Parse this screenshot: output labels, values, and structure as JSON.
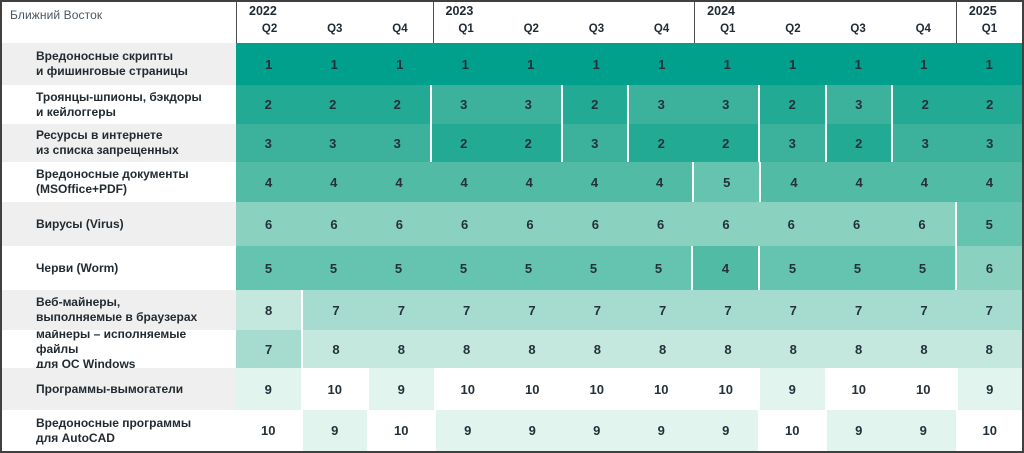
{
  "title": "Ближний Восток",
  "header": {
    "years": [
      {
        "label": "2022",
        "quarters": [
          "Q2",
          "Q3",
          "Q4"
        ]
      },
      {
        "label": "2023",
        "quarters": [
          "Q1",
          "Q2",
          "Q3",
          "Q4"
        ]
      },
      {
        "label": "2024",
        "quarters": [
          "Q1",
          "Q2",
          "Q3",
          "Q4"
        ]
      },
      {
        "label": "2025",
        "quarters": [
          "Q1"
        ]
      }
    ]
  },
  "colors": {
    "rank_scale": {
      "1": "#00a08c",
      "2": "#23aa94",
      "3": "#3cb29d",
      "4": "#52bba6",
      "5": "#65c4af",
      "6": "#8ad1c0",
      "7": "#a6dccf",
      "8": "#c4e8de",
      "9": "#e2f4ee",
      "10": "#ffffff"
    },
    "label_stripe": "#efefef",
    "label_text": "#222b31",
    "header_text": "#1f2a33",
    "title_text": "#4a5761"
  },
  "chart_data": {
    "type": "heatmap",
    "title": "Ближний Восток",
    "value_meaning": "rank of threat category per quarter (1 = top rank; darker cell = higher rank)",
    "value_range": [
      1,
      10
    ],
    "columns": [
      "2022 Q2",
      "2022 Q3",
      "2022 Q4",
      "2023 Q1",
      "2023 Q2",
      "2023 Q3",
      "2023 Q4",
      "2024 Q1",
      "2024 Q2",
      "2024 Q3",
      "2024 Q4",
      "2025 Q1"
    ],
    "rows": [
      {
        "label": "Вредоносные скрипты\nи фишинговые страницы",
        "values": [
          1,
          1,
          1,
          1,
          1,
          1,
          1,
          1,
          1,
          1,
          1,
          1
        ]
      },
      {
        "label": "Троянцы-шпионы, бэкдоры\nи кейлоггеры",
        "values": [
          2,
          2,
          2,
          3,
          3,
          2,
          3,
          3,
          2,
          3,
          2,
          2
        ]
      },
      {
        "label": "Ресурсы в интернете\nиз списка запрещенных",
        "values": [
          3,
          3,
          3,
          2,
          2,
          3,
          2,
          2,
          3,
          2,
          3,
          3
        ]
      },
      {
        "label": "Вредоносные документы\n(MSOffice+PDF)",
        "values": [
          4,
          4,
          4,
          4,
          4,
          4,
          4,
          5,
          4,
          4,
          4,
          4
        ]
      },
      {
        "label": "Вирусы (Virus)",
        "values": [
          6,
          6,
          6,
          6,
          6,
          6,
          6,
          6,
          6,
          6,
          6,
          5
        ]
      },
      {
        "label": "Черви (Worm)",
        "values": [
          5,
          5,
          5,
          5,
          5,
          5,
          5,
          4,
          5,
          5,
          5,
          6
        ]
      },
      {
        "label": "Веб-майнеры,\nвыполняемые в браузерах",
        "values": [
          8,
          7,
          7,
          7,
          7,
          7,
          7,
          7,
          7,
          7,
          7,
          7
        ]
      },
      {
        "label": "майнеры – исполняемые\nфайлы\nдля ОС Windows",
        "values": [
          7,
          8,
          8,
          8,
          8,
          8,
          8,
          8,
          8,
          8,
          8,
          8
        ]
      },
      {
        "label": "Программы-вымогатели",
        "values": [
          9,
          10,
          9,
          10,
          10,
          10,
          10,
          10,
          9,
          10,
          10,
          9
        ]
      },
      {
        "label": "Вредоносные программы\nдля AutoCAD",
        "values": [
          10,
          9,
          10,
          9,
          9,
          9,
          9,
          9,
          10,
          9,
          9,
          10
        ]
      }
    ]
  }
}
